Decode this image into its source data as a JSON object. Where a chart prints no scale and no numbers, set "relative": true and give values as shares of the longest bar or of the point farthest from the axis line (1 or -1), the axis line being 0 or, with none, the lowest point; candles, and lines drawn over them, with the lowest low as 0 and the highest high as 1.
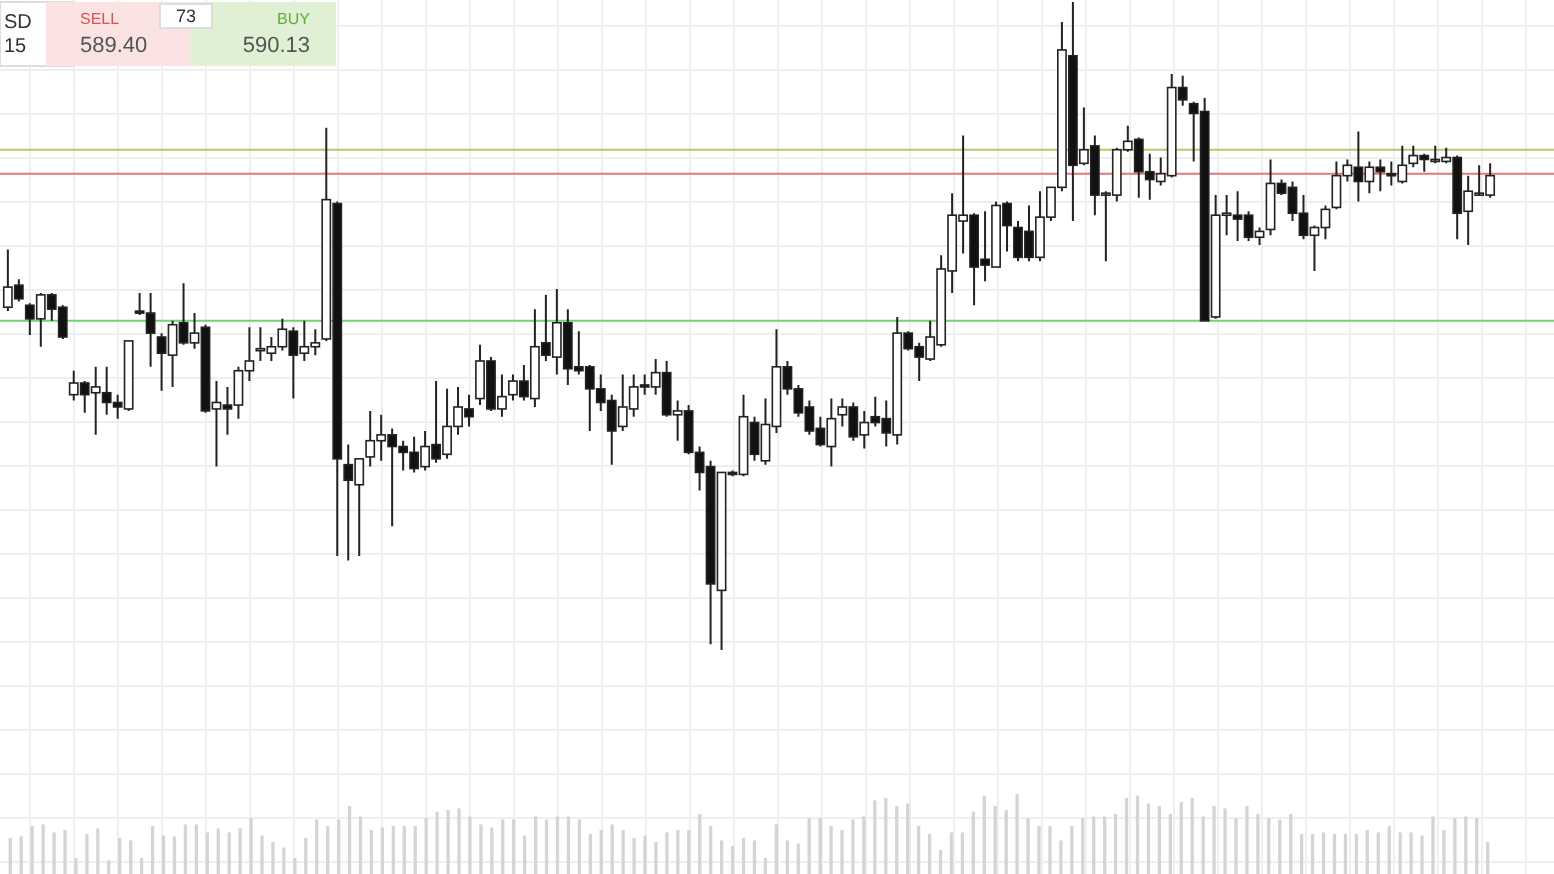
{
  "chart_data": [
    {
      "type": "candlestick",
      "relative": true,
      "grid": true,
      "categories": [
        null,
        null,
        null,
        null,
        null,
        null,
        null,
        null,
        null,
        null,
        null,
        null,
        null,
        null,
        null,
        null,
        null,
        null,
        null,
        null,
        null,
        null,
        null,
        null,
        null,
        null,
        null,
        null,
        null,
        null,
        null,
        null,
        null,
        null,
        null,
        null,
        null,
        null,
        null,
        null,
        null,
        null,
        null,
        null,
        null,
        null,
        null,
        null,
        null,
        null,
        null,
        null,
        null,
        null,
        null,
        null,
        null,
        null,
        null,
        null,
        null,
        null,
        null,
        null,
        null,
        null,
        null,
        null,
        null,
        null,
        null,
        null,
        null,
        null,
        null,
        null,
        null,
        null,
        null,
        null,
        null,
        null,
        null,
        null,
        null,
        null,
        null,
        null,
        null,
        null,
        null,
        null,
        null,
        null,
        null,
        null,
        null,
        null,
        null,
        null,
        null,
        null,
        null,
        null,
        null,
        null,
        null,
        null,
        null,
        null,
        null,
        null,
        null,
        null,
        null,
        null,
        null,
        null,
        null,
        null,
        null,
        null,
        null,
        null,
        null,
        null,
        null,
        null,
        null,
        null,
        null,
        null,
        null,
        null,
        null,
        null
      ],
      "ohlc": [
        [
          0.529,
          0.618,
          0.523,
          0.56
        ],
        [
          0.563,
          0.572,
          0.538,
          0.542
        ],
        [
          0.532,
          0.535,
          0.486,
          0.511
        ],
        [
          0.511,
          0.551,
          0.468,
          0.548
        ],
        [
          0.548,
          0.551,
          0.508,
          0.526
        ],
        [
          0.529,
          0.532,
          0.48,
          0.483
        ],
        [
          0.394,
          0.431,
          0.385,
          0.412
        ],
        [
          0.412,
          0.415,
          0.366,
          0.394
        ],
        [
          0.397,
          0.437,
          0.332,
          0.406
        ],
        [
          0.397,
          0.437,
          0.363,
          0.382
        ],
        [
          0.382,
          0.394,
          0.357,
          0.375
        ],
        [
          0.372,
          0.477,
          0.369,
          0.477
        ],
        [
          0.523,
          0.551,
          0.517,
          0.52
        ],
        [
          0.52,
          0.551,
          0.437,
          0.489
        ],
        [
          0.483,
          0.489,
          0.4,
          0.458
        ],
        [
          0.455,
          0.508,
          0.406,
          0.502
        ],
        [
          0.505,
          0.566,
          0.471,
          0.474
        ],
        [
          0.474,
          0.52,
          0.465,
          0.489
        ],
        [
          0.498,
          0.502,
          0.366,
          0.369
        ],
        [
          0.372,
          0.415,
          0.283,
          0.382
        ],
        [
          0.378,
          0.406,
          0.332,
          0.372
        ],
        [
          0.378,
          0.437,
          0.357,
          0.431
        ],
        [
          0.431,
          0.498,
          0.415,
          0.446
        ],
        [
          0.462,
          0.498,
          0.446,
          0.465
        ],
        [
          0.458,
          0.483,
          0.446,
          0.468
        ],
        [
          0.468,
          0.511,
          0.462,
          0.495
        ],
        [
          0.492,
          0.498,
          0.388,
          0.455
        ],
        [
          0.458,
          0.508,
          0.446,
          0.468
        ],
        [
          0.468,
          0.495,
          0.455,
          0.474
        ],
        [
          0.48,
          0.806,
          0.477,
          0.695
        ],
        [
          0.689,
          0.692,
          0.145,
          0.295
        ],
        [
          0.286,
          0.317,
          0.138,
          0.262
        ],
        [
          0.255,
          0.295,
          0.145,
          0.295
        ],
        [
          0.298,
          0.369,
          0.283,
          0.323
        ],
        [
          0.323,
          0.363,
          0.292,
          0.332
        ],
        [
          0.332,
          0.342,
          0.191,
          0.314
        ],
        [
          0.314,
          0.323,
          0.277,
          0.305
        ],
        [
          0.305,
          0.329,
          0.274,
          0.28
        ],
        [
          0.283,
          0.338,
          0.277,
          0.314
        ],
        [
          0.317,
          0.415,
          0.289,
          0.295
        ],
        [
          0.302,
          0.403,
          0.295,
          0.345
        ],
        [
          0.345,
          0.406,
          0.332,
          0.375
        ],
        [
          0.372,
          0.394,
          0.345,
          0.36
        ],
        [
          0.388,
          0.471,
          0.378,
          0.446
        ],
        [
          0.446,
          0.452,
          0.369,
          0.372
        ],
        [
          0.372,
          0.425,
          0.36,
          0.391
        ],
        [
          0.394,
          0.425,
          0.385,
          0.415
        ],
        [
          0.415,
          0.44,
          0.385,
          0.391
        ],
        [
          0.388,
          0.526,
          0.375,
          0.468
        ],
        [
          0.474,
          0.548,
          0.446,
          0.455
        ],
        [
          0.452,
          0.557,
          0.425,
          0.505
        ],
        [
          0.505,
          0.526,
          0.409,
          0.434
        ],
        [
          0.437,
          0.492,
          0.425,
          0.431
        ],
        [
          0.437,
          0.44,
          0.338,
          0.403
        ],
        [
          0.403,
          0.425,
          0.369,
          0.382
        ],
        [
          0.385,
          0.394,
          0.286,
          0.338
        ],
        [
          0.345,
          0.425,
          0.338,
          0.375
        ],
        [
          0.372,
          0.425,
          0.36,
          0.406
        ],
        [
          0.409,
          0.425,
          0.394,
          0.406
        ],
        [
          0.406,
          0.449,
          0.394,
          0.428
        ],
        [
          0.428,
          0.446,
          0.36,
          0.363
        ],
        [
          0.363,
          0.385,
          0.323,
          0.369
        ],
        [
          0.369,
          0.378,
          0.302,
          0.305
        ],
        [
          0.305,
          0.314,
          0.246,
          0.274
        ],
        [
          0.283,
          0.292,
          0.009,
          0.102
        ],
        [
          0.092,
          0.274,
          0,
          0.274
        ],
        [
          0.274,
          0.277,
          0.268,
          0.271
        ],
        [
          0.271,
          0.394,
          0.268,
          0.36
        ],
        [
          0.351,
          0.36,
          0.292,
          0.302
        ],
        [
          0.292,
          0.388,
          0.286,
          0.348
        ],
        [
          0.345,
          0.495,
          0.335,
          0.437
        ],
        [
          0.437,
          0.446,
          0.394,
          0.403
        ],
        [
          0.403,
          0.409,
          0.36,
          0.366
        ],
        [
          0.375,
          0.385,
          0.332,
          0.338
        ],
        [
          0.342,
          0.36,
          0.314,
          0.317
        ],
        [
          0.314,
          0.388,
          0.283,
          0.357
        ],
        [
          0.363,
          0.388,
          0.345,
          0.375
        ],
        [
          0.375,
          0.382,
          0.323,
          0.329
        ],
        [
          0.332,
          0.369,
          0.311,
          0.351
        ],
        [
          0.36,
          0.391,
          0.345,
          0.351
        ],
        [
          0.357,
          0.385,
          0.314,
          0.335
        ],
        [
          0.332,
          0.514,
          0.317,
          0.489
        ],
        [
          0.489,
          0.492,
          0.462,
          0.465
        ],
        [
          0.468,
          0.474,
          0.415,
          0.452
        ],
        [
          0.449,
          0.508,
          0.446,
          0.483
        ],
        [
          0.471,
          0.609,
          0.468,
          0.588
        ],
        [
          0.585,
          0.705,
          0.551,
          0.671
        ],
        [
          0.662,
          0.794,
          0.612,
          0.671
        ],
        [
          0.671,
          0.674,
          0.532,
          0.591
        ],
        [
          0.603,
          0.677,
          0.569,
          0.594
        ],
        [
          0.591,
          0.692,
          0.591,
          0.686
        ],
        [
          0.689,
          0.692,
          0.615,
          0.655
        ],
        [
          0.652,
          0.662,
          0.6,
          0.606
        ],
        [
          0.646,
          0.686,
          0.6,
          0.606
        ],
        [
          0.606,
          0.708,
          0.6,
          0.668
        ],
        [
          0.668,
          0.714,
          0.662,
          0.714
        ],
        [
          0.714,
          0.969,
          0.708,
          0.926
        ],
        [
          0.917,
          1,
          0.662,
          0.748
        ],
        [
          0.751,
          0.837,
          0.748,
          0.772
        ],
        [
          0.778,
          0.794,
          0.671,
          0.702
        ],
        [
          0.705,
          0.708,
          0.6,
          0.705
        ],
        [
          0.702,
          0.775,
          0.692,
          0.772
        ],
        [
          0.772,
          0.809,
          0.769,
          0.785
        ],
        [
          0.788,
          0.791,
          0.698,
          0.738
        ],
        [
          0.738,
          0.766,
          0.695,
          0.726
        ],
        [
          0.723,
          0.76,
          0.717,
          0.735
        ],
        [
          0.732,
          0.889,
          0.729,
          0.868
        ],
        [
          0.868,
          0.886,
          0.84,
          0.849
        ],
        [
          0.843,
          0.846,
          0.754,
          0.828
        ],
        [
          0.831,
          0.852,
          0.508,
          0.508
        ],
        [
          0.514,
          0.702,
          0.511,
          0.671
        ],
        [
          0.671,
          0.702,
          0.64,
          0.674
        ],
        [
          0.671,
          0.708,
          0.631,
          0.665
        ],
        [
          0.671,
          0.677,
          0.631,
          0.637
        ],
        [
          0.637,
          0.652,
          0.625,
          0.646
        ],
        [
          0.649,
          0.757,
          0.64,
          0.72
        ],
        [
          0.72,
          0.726,
          0.702,
          0.705
        ],
        [
          0.714,
          0.723,
          0.662,
          0.674
        ],
        [
          0.674,
          0.702,
          0.634,
          0.64
        ],
        [
          0.64,
          0.655,
          0.585,
          0.652
        ],
        [
          0.652,
          0.686,
          0.634,
          0.68
        ],
        [
          0.683,
          0.754,
          0.68,
          0.732
        ],
        [
          0.732,
          0.757,
          0.723,
          0.748
        ],
        [
          0.745,
          0.8,
          0.692,
          0.723
        ],
        [
          0.723,
          0.754,
          0.705,
          0.745
        ],
        [
          0.745,
          0.757,
          0.708,
          0.738
        ],
        [
          0.735,
          0.754,
          0.717,
          0.732
        ],
        [
          0.723,
          0.778,
          0.72,
          0.748
        ],
        [
          0.751,
          0.778,
          0.745,
          0.763
        ],
        [
          0.763,
          0.766,
          0.738,
          0.757
        ],
        [
          0.757,
          0.778,
          0.751,
          0.757
        ],
        [
          0.754,
          0.775,
          0.751,
          0.76
        ],
        [
          0.76,
          0.763,
          0.634,
          0.674
        ],
        [
          0.677,
          0.732,
          0.625,
          0.708
        ],
        [
          0.705,
          0.748,
          0.702,
          0.705
        ],
        [
          0.702,
          0.751,
          0.698,
          0.732
        ]
      ],
      "ref_lines": [
        {
          "axis": "y",
          "value": 0.772,
          "color": "#b9c86a"
        },
        {
          "axis": "y",
          "value": 0.735,
          "color": "#e07a7a"
        },
        {
          "axis": "y",
          "value": 0.508,
          "color": "#6fd46f"
        }
      ],
      "annotations": [
        "SD",
        "15",
        "SELL",
        "589.40",
        "73",
        "BUY",
        "590.13"
      ]
    },
    {
      "type": "bar",
      "relative": true,
      "color": "#d4d4d4",
      "categories": [
        null,
        null,
        null,
        null,
        null,
        null,
        null,
        null,
        null,
        null,
        null,
        null,
        null,
        null,
        null,
        null,
        null,
        null,
        null,
        null,
        null,
        null,
        null,
        null,
        null,
        null,
        null,
        null,
        null,
        null,
        null,
        null,
        null,
        null,
        null,
        null,
        null,
        null,
        null,
        null,
        null,
        null,
        null,
        null,
        null,
        null,
        null,
        null,
        null,
        null,
        null,
        null,
        null,
        null,
        null,
        null,
        null,
        null,
        null,
        null,
        null,
        null,
        null,
        null,
        null,
        null,
        null,
        null,
        null,
        null,
        null,
        null,
        null,
        null,
        null,
        null,
        null,
        null,
        null,
        null,
        null,
        null,
        null,
        null,
        null,
        null,
        null,
        null,
        null,
        null,
        null,
        null,
        null,
        null,
        null,
        null,
        null,
        null,
        null,
        null,
        null,
        null,
        null,
        null,
        null,
        null,
        null,
        null,
        null,
        null,
        null,
        null,
        null,
        null,
        null,
        null,
        null,
        null,
        null,
        null,
        null,
        null,
        null,
        null,
        null,
        null,
        null,
        null,
        null,
        null,
        null,
        null,
        null,
        null,
        null,
        null
      ],
      "values": [
        0.45,
        0.47,
        0.6,
        0.62,
        0.52,
        0.55,
        0.2,
        0.5,
        0.57,
        0.17,
        0.45,
        0.42,
        0.2,
        0.6,
        0.48,
        0.47,
        0.62,
        0.62,
        0.52,
        0.57,
        0.52,
        0.57,
        0.7,
        0.48,
        0.4,
        0.33,
        0.2,
        0.45,
        0.68,
        0.6,
        0.68,
        0.85,
        0.72,
        0.55,
        0.58,
        0.6,
        0.6,
        0.6,
        0.7,
        0.78,
        0.8,
        0.82,
        0.72,
        0.62,
        0.58,
        0.68,
        0.68,
        0.48,
        0.72,
        0.68,
        0.72,
        0.72,
        0.68,
        0.5,
        0.55,
        0.62,
        0.55,
        0.45,
        0.48,
        0.4,
        0.52,
        0.55,
        0.55,
        0.75,
        0.6,
        0.42,
        0.35,
        0.45,
        0.42,
        0.2,
        0.62,
        0.42,
        0.38,
        0.7,
        0.7,
        0.6,
        0.55,
        0.68,
        0.72,
        0.92,
        0.95,
        0.85,
        0.88,
        0.6,
        0.5,
        0.3,
        0.52,
        0.52,
        0.78,
        0.98,
        0.85,
        0.8,
        1,
        0.7,
        0.6,
        0.6,
        0.42,
        0.6,
        0.7,
        0.72,
        0.72,
        0.75,
        0.95,
        0.98,
        0.88,
        0.85,
        0.75,
        0.9,
        0.95,
        0.72,
        0.85,
        0.82,
        0.7,
        0.85,
        0.75,
        0.7,
        0.68,
        0.75,
        0.5,
        0.5,
        0.52,
        0.5,
        0.5,
        0.5,
        0.55,
        0.52,
        0.6,
        0.52,
        0.52,
        0.48,
        0.72,
        0.55,
        0.7,
        0.72,
        0.7,
        0.4
      ]
    }
  ]
}
